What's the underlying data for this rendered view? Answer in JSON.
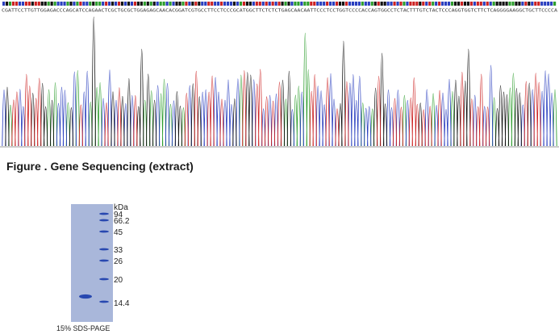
{
  "sequencing": {
    "sequence": "CGATTCCTTGTTGGAGACCCAGCATCCAGAACTCGCTGCGCTGGAGAGCAACACGGATCGTGCCTTCCTCCCGCATGGCTTCTCTCTGAGCAACAATTCCCTCCTGGTCCCCACCAGTGGCCTCTACTTTGTCTACTCCCAGGTGGTCTTCTCAGGGGAAGGCTGCTTCCCCA",
    "colors": {
      "A": "#2e9e2e",
      "C": "#2a3fbf",
      "G": "#111111",
      "T": "#cc2222"
    }
  },
  "figure_caption": "Figure . Gene Sequencing (extract)",
  "gel": {
    "unit_label": "kDa",
    "markers": [
      "94",
      "66.2",
      "45",
      "33",
      "26",
      "20",
      "14.4"
    ],
    "caption": "15% SDS-PAGE",
    "colors": {
      "background": "#a9b7da",
      "band": "#2848b0"
    }
  }
}
